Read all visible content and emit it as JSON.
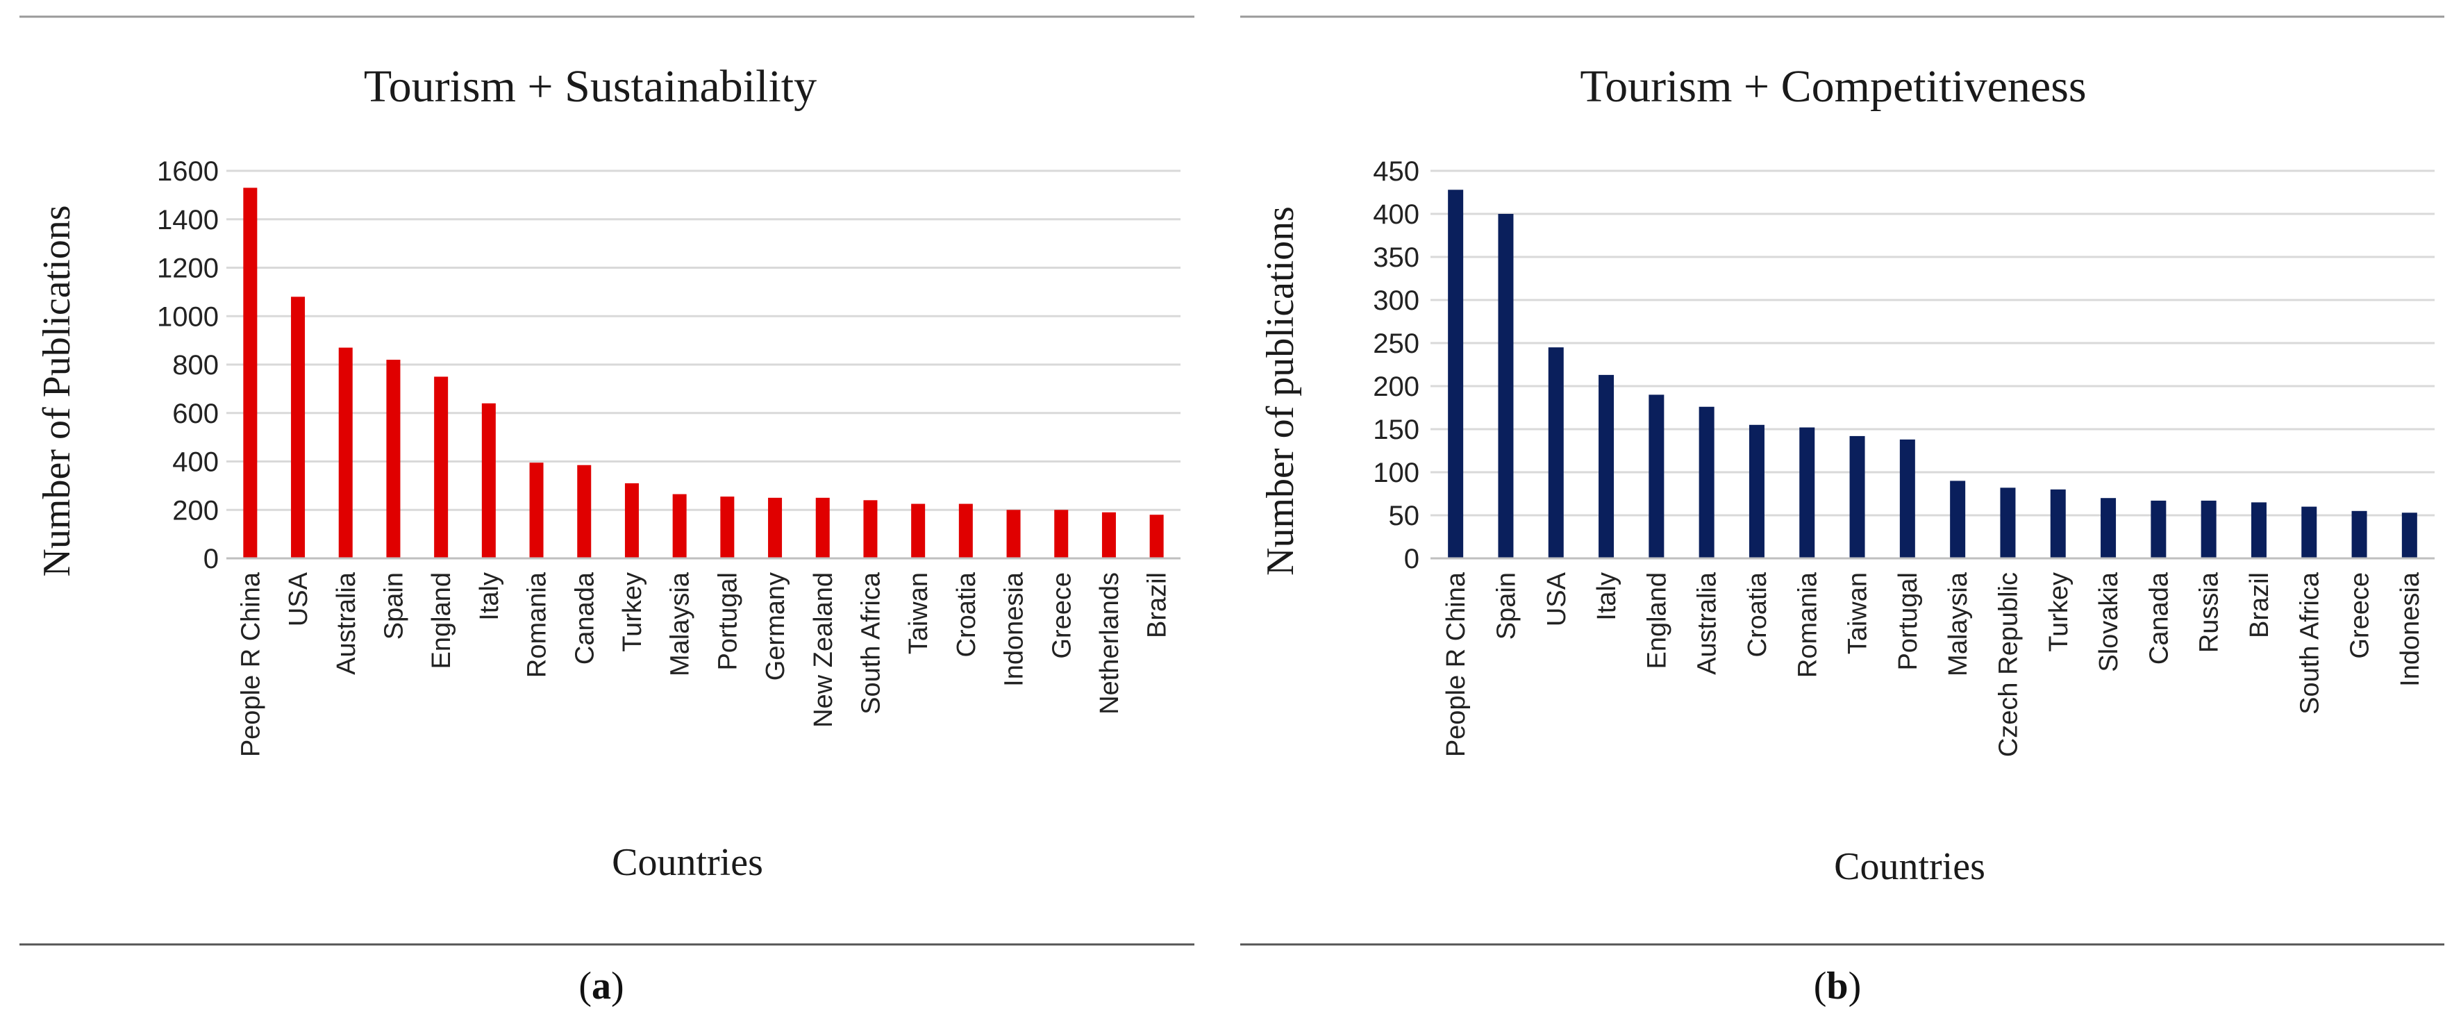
{
  "chart_data": [
    {
      "type": "bar",
      "panel_label": "a",
      "title": "Tourism + Sustainability",
      "xlabel": "Countries",
      "ylabel": "Number of Publications",
      "ylim": [
        0,
        1600
      ],
      "yticks": [
        0,
        200,
        400,
        600,
        800,
        1000,
        1200,
        1400,
        1600
      ],
      "grid": true,
      "color": "#e00000",
      "categories": [
        "People R China",
        "USA",
        "Australia",
        "Spain",
        "England",
        "Italy",
        "Romania",
        "Canada",
        "Turkey",
        "Malaysia",
        "Portugal",
        "Germany",
        "New Zealand",
        "South Africa",
        "Taiwan",
        "Croatia",
        "Indonesia",
        "Greece",
        "Netherlands",
        "Brazil"
      ],
      "values": [
        1530,
        1080,
        870,
        820,
        750,
        640,
        395,
        385,
        310,
        265,
        255,
        250,
        250,
        240,
        225,
        225,
        200,
        200,
        190,
        180
      ]
    },
    {
      "type": "bar",
      "panel_label": "b",
      "title": "Tourism + Competitiveness",
      "xlabel": "Countries",
      "ylabel": "Number of publications",
      "ylim": [
        0,
        450
      ],
      "yticks": [
        0,
        50,
        100,
        150,
        200,
        250,
        300,
        350,
        400,
        450
      ],
      "grid": true,
      "color": "#0a1f5c",
      "categories": [
        "People R China",
        "Spain",
        "USA",
        "Italy",
        "England",
        "Australia",
        "Croatia",
        "Romania",
        "Taiwan",
        "Portugal",
        "Malaysia",
        "Czech Republic",
        "Turkey",
        "Slovakia",
        "Canada",
        "Russia",
        "Brazil",
        "South Africa",
        "Greece",
        "Indonesia"
      ],
      "values": [
        428,
        400,
        245,
        213,
        190,
        176,
        155,
        152,
        142,
        138,
        90,
        82,
        80,
        70,
        67,
        67,
        65,
        60,
        55,
        53
      ]
    }
  ]
}
